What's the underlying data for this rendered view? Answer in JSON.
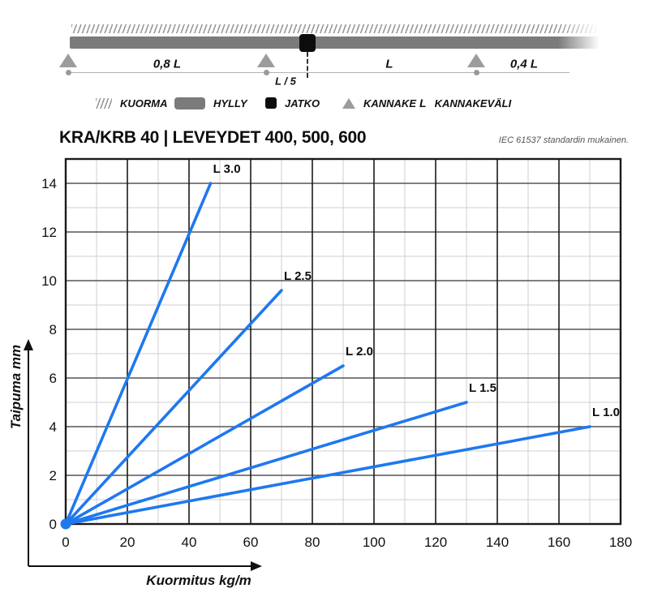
{
  "diagram": {
    "labels": {
      "span1": "0,8 L",
      "span2": "L / 5",
      "span3": "L",
      "span4": "0,4 L"
    }
  },
  "legend": {
    "items": [
      {
        "icon": "load-hatch-icon",
        "label": "KUORMA"
      },
      {
        "icon": "shelf-icon",
        "label": "HYLLY"
      },
      {
        "icon": "joint-icon",
        "label": "JATKO"
      },
      {
        "icon": "support-icon",
        "label": "KANNAKE"
      },
      {
        "icon": "span-length-symbol",
        "symbol": "L",
        "label": "KANNAKEVÄLI"
      }
    ]
  },
  "header": {
    "title": "KRA/KRB 40 | LEVEYDET 400, 500, 600",
    "note": "IEC 61537 standardin mukainen."
  },
  "chart_data": {
    "type": "line",
    "xlabel": "Kuormitus kg/m",
    "ylabel": "Taipuma mm",
    "xlim": [
      0,
      180
    ],
    "ylim": [
      0,
      15
    ],
    "xticks": [
      0,
      20,
      40,
      60,
      80,
      100,
      120,
      140,
      160,
      180
    ],
    "yticks": [
      0,
      2,
      4,
      6,
      8,
      10,
      12,
      14
    ],
    "x_major_step": 20,
    "x_minor_step": 10,
    "y_major_step": 2,
    "y_minor_step": 1,
    "grid": "on",
    "line_color": "#1e78f0",
    "series": [
      {
        "name": "L 3.0",
        "points": [
          [
            0,
            0
          ],
          [
            47,
            14
          ]
        ]
      },
      {
        "name": "L 2.5",
        "points": [
          [
            0,
            0
          ],
          [
            70,
            9.6
          ]
        ]
      },
      {
        "name": "L 2.0",
        "points": [
          [
            0,
            0
          ],
          [
            90,
            6.5
          ]
        ]
      },
      {
        "name": "L 1.5",
        "points": [
          [
            0,
            0
          ],
          [
            130,
            5.0
          ]
        ]
      },
      {
        "name": "L 1.0",
        "points": [
          [
            0,
            0
          ],
          [
            170,
            4.0
          ]
        ]
      }
    ]
  }
}
